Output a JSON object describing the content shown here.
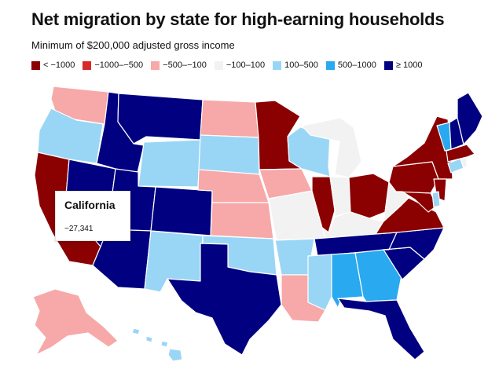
{
  "header": {
    "title": "Net migration by state for high-earning households",
    "subtitle": "Minimum of $200,000 adjusted gross income"
  },
  "legend": [
    {
      "label": "< −1000",
      "color": "#8b0000"
    },
    {
      "label": "−1000–−500",
      "color": "#d62b2b"
    },
    {
      "label": "−500–−100",
      "color": "#f7a8a8"
    },
    {
      "label": "−100–100",
      "color": "#f2f2f2"
    },
    {
      "label": "100–500",
      "color": "#99d6f5"
    },
    {
      "label": "500–1000",
      "color": "#29a9ef"
    },
    {
      "label": "≥ 1000",
      "color": "#000080"
    }
  ],
  "tooltip": {
    "state": "California",
    "value": "−27,341"
  },
  "states": [
    {
      "name": "Washington",
      "category": "-500 to -100",
      "color": "#f7a8a8"
    },
    {
      "name": "Oregon",
      "category": "100 to 500",
      "color": "#99d6f5"
    },
    {
      "name": "California",
      "category": "< -1000",
      "color": "#8b0000"
    },
    {
      "name": "Nevada",
      "category": ">= 1000",
      "color": "#000080"
    },
    {
      "name": "Idaho",
      "category": ">= 1000",
      "color": "#000080"
    },
    {
      "name": "Montana",
      "category": ">= 1000",
      "color": "#000080"
    },
    {
      "name": "Wyoming",
      "category": "100 to 500",
      "color": "#99d6f5"
    },
    {
      "name": "Utah",
      "category": ">= 1000",
      "color": "#000080"
    },
    {
      "name": "Arizona",
      "category": ">= 1000",
      "color": "#000080"
    },
    {
      "name": "Colorado",
      "category": ">= 1000",
      "color": "#000080"
    },
    {
      "name": "New Mexico",
      "category": "100 to 500",
      "color": "#99d6f5"
    },
    {
      "name": "North Dakota",
      "category": "-500 to -100",
      "color": "#f7a8a8"
    },
    {
      "name": "South Dakota",
      "category": "100 to 500",
      "color": "#99d6f5"
    },
    {
      "name": "Nebraska",
      "category": "-500 to -100",
      "color": "#f7a8a8"
    },
    {
      "name": "Kansas",
      "category": "-500 to -100",
      "color": "#f7a8a8"
    },
    {
      "name": "Oklahoma",
      "category": "100 to 500",
      "color": "#99d6f5"
    },
    {
      "name": "Texas",
      "category": ">= 1000",
      "color": "#000080"
    },
    {
      "name": "Minnesota",
      "category": "< -1000",
      "color": "#8b0000"
    },
    {
      "name": "Iowa",
      "category": "-500 to -100",
      "color": "#f7a8a8"
    },
    {
      "name": "Missouri",
      "category": "-100 to 100",
      "color": "#f2f2f2"
    },
    {
      "name": "Arkansas",
      "category": "100 to 500",
      "color": "#99d6f5"
    },
    {
      "name": "Louisiana",
      "category": "-500 to -100",
      "color": "#f7a8a8"
    },
    {
      "name": "Wisconsin",
      "category": "100 to 500",
      "color": "#99d6f5"
    },
    {
      "name": "Illinois",
      "category": "< -1000",
      "color": "#8b0000"
    },
    {
      "name": "Michigan",
      "category": "-100 to 100",
      "color": "#f2f2f2"
    },
    {
      "name": "Indiana",
      "category": "-100 to 100",
      "color": "#f2f2f2"
    },
    {
      "name": "Ohio",
      "category": "< -1000",
      "color": "#8b0000"
    },
    {
      "name": "Kentucky",
      "category": "-100 to 100",
      "color": "#f2f2f2"
    },
    {
      "name": "Tennessee",
      "category": ">= 1000",
      "color": "#000080"
    },
    {
      "name": "Mississippi",
      "category": "100 to 500",
      "color": "#99d6f5"
    },
    {
      "name": "Alabama",
      "category": "500 to 1000",
      "color": "#29a9ef"
    },
    {
      "name": "Georgia",
      "category": "500 to 1000",
      "color": "#29a9ef"
    },
    {
      "name": "Florida",
      "category": ">= 1000",
      "color": "#000080"
    },
    {
      "name": "South Carolina",
      "category": ">= 1000",
      "color": "#000080"
    },
    {
      "name": "North Carolina",
      "category": ">= 1000",
      "color": "#000080"
    },
    {
      "name": "Virginia",
      "category": "< -1000",
      "color": "#8b0000"
    },
    {
      "name": "West Virginia",
      "category": "-100 to 100",
      "color": "#f2f2f2"
    },
    {
      "name": "Pennsylvania",
      "category": "< -1000",
      "color": "#8b0000"
    },
    {
      "name": "New York",
      "category": "< -1000",
      "color": "#8b0000"
    },
    {
      "name": "New Jersey",
      "category": "< -1000",
      "color": "#8b0000"
    },
    {
      "name": "Maryland",
      "category": "< -1000",
      "color": "#8b0000"
    },
    {
      "name": "Delaware",
      "category": "100 to 500",
      "color": "#99d6f5"
    },
    {
      "name": "Connecticut",
      "category": "100 to 500",
      "color": "#99d6f5"
    },
    {
      "name": "Rhode Island",
      "category": "-100 to 100",
      "color": "#f2f2f2"
    },
    {
      "name": "Massachusetts",
      "category": "< -1000",
      "color": "#8b0000"
    },
    {
      "name": "Vermont",
      "category": "500 to 1000",
      "color": "#29a9ef"
    },
    {
      "name": "New Hampshire",
      "category": ">= 1000",
      "color": "#000080"
    },
    {
      "name": "Maine",
      "category": ">= 1000",
      "color": "#000080"
    },
    {
      "name": "Alaska",
      "category": "-500 to -100",
      "color": "#f7a8a8"
    },
    {
      "name": "Hawaii",
      "category": "100 to 500",
      "color": "#99d6f5"
    }
  ]
}
